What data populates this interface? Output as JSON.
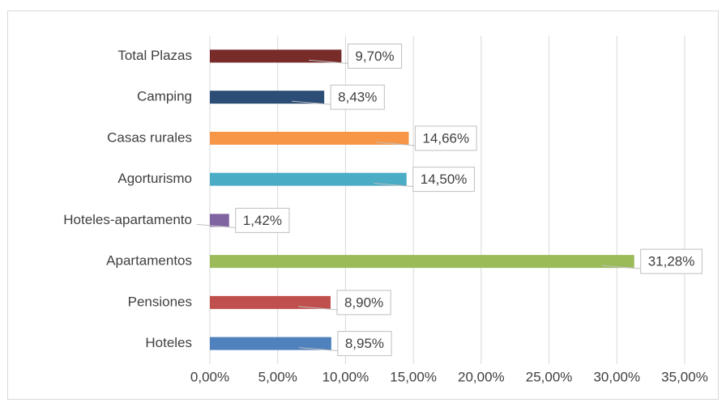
{
  "chart_data": {
    "type": "barh",
    "categories": [
      "Total Plazas",
      "Camping",
      "Casas rurales",
      "Agorturismo",
      "Hoteles-apartamento",
      "Apartamentos",
      "Pensiones",
      "Hoteles"
    ],
    "values": [
      9.7,
      8.43,
      14.66,
      14.5,
      1.42,
      31.28,
      8.9,
      8.95
    ],
    "value_labels": [
      "9,70%",
      "8,43%",
      "14,66%",
      "14,50%",
      "1,42%",
      "31,28%",
      "8,90%",
      "8,95%"
    ],
    "colors": [
      "#772c2a",
      "#2c4d75",
      "#f79646",
      "#4bacc6",
      "#8064a2",
      "#9bbb59",
      "#c0504d",
      "#4f81bd"
    ],
    "xlim": [
      0,
      35
    ],
    "xticks": [
      {
        "value": 0,
        "label": "0,00%"
      },
      {
        "value": 5,
        "label": "5,00%"
      },
      {
        "value": 10,
        "label": "10,00%"
      },
      {
        "value": 15,
        "label": "15,00%"
      },
      {
        "value": 20,
        "label": "20,00%"
      },
      {
        "value": 25,
        "label": "25,00%"
      },
      {
        "value": 30,
        "label": "30,00%"
      },
      {
        "value": 35,
        "label": "35,00%"
      }
    ],
    "grid": true
  }
}
